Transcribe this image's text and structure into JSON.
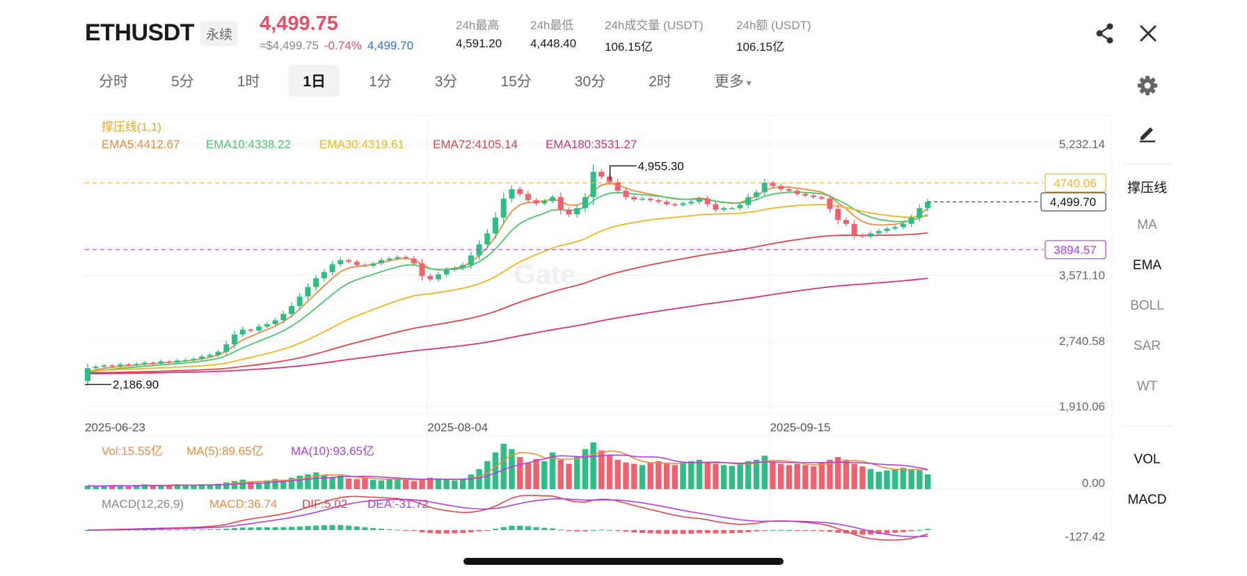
{
  "header": {
    "symbol": "ETHUSDT",
    "contract_type": "永续",
    "last_price": "4,499.75",
    "usd_price": "≈$4,499.75",
    "change_pct": "-0.74%",
    "mark_price": "4,499.70",
    "stats": [
      {
        "label": "24h最高",
        "value": "4,591.20"
      },
      {
        "label": "24h最低",
        "value": "4,448.40"
      },
      {
        "label": "24h成交量 (USDT)",
        "value": "106.15亿"
      },
      {
        "label": "24h额 (USDT)",
        "value": "106.15亿"
      }
    ]
  },
  "tabs": [
    "分时",
    "5分",
    "1时",
    "1日",
    "1分",
    "3分",
    "15分",
    "30分",
    "2时",
    "更多"
  ],
  "active_tab": "1日",
  "icons": {
    "share": "share-icon",
    "close": "close-icon",
    "settings": "gear-icon",
    "draw": "pencil-icon"
  },
  "right_panel": {
    "main_indicators": [
      "撑压线",
      "MA",
      "EMA",
      "BOLL",
      "SAR",
      "WT"
    ],
    "active_main": [
      "撑压线",
      "EMA"
    ],
    "sub_indicators": [
      "VOL",
      "MACD"
    ]
  },
  "chart_data": {
    "type": "candlestick",
    "interval": "1日",
    "watermark": "Gate",
    "support_resistance_label": "撑压线(1,1)",
    "ema_legend": [
      {
        "name": "EMA5",
        "text": "EMA5:4412.67",
        "color": "#f08a3c"
      },
      {
        "name": "EMA10",
        "text": "EMA10:4338.22",
        "color": "#48c86a"
      },
      {
        "name": "EMA30",
        "text": "EMA30:4319.61",
        "color": "#f2b51c"
      },
      {
        "name": "EMA72",
        "text": "EMA72:4105.14",
        "color": "#e4424a"
      },
      {
        "name": "EMA180",
        "text": "EMA180:3531.27",
        "color": "#d8307e"
      }
    ],
    "y_ticks": [
      "5,232.14",
      "3,571.10",
      "2,740.58",
      "1,910.06"
    ],
    "y_tick_values": [
      5232.14,
      3571.1,
      2740.58,
      1910.06
    ],
    "x_labels": [
      {
        "label": "2025-06-23",
        "index": 0
      },
      {
        "label": "2025-08-04",
        "index": 42
      },
      {
        "label": "2025-09-15",
        "index": 84
      }
    ],
    "resistance": {
      "label": "4740.06",
      "value": 4740.06,
      "color": "#f5b82e"
    },
    "support": {
      "label": "3894.57",
      "value": 3894.57,
      "color": "#b03ee8"
    },
    "current": {
      "label": "4,499.70",
      "value": 4499.7
    },
    "high_marker": {
      "label": "4,955.30",
      "value": 4955.3
    },
    "low_marker": {
      "label": "2,186.90",
      "value": 2186.9
    },
    "up_color": "#2ebd85",
    "down_color": "#f0616d",
    "closes": [
      2393,
      2412,
      2428,
      2421,
      2440,
      2436,
      2445,
      2462,
      2450,
      2478,
      2466,
      2488,
      2495,
      2510,
      2540,
      2560,
      2600,
      2695,
      2820,
      2880,
      2870,
      2920,
      2950,
      3000,
      3080,
      3180,
      3300,
      3420,
      3530,
      3610,
      3710,
      3760,
      3740,
      3700,
      3690,
      3720,
      3760,
      3780,
      3800,
      3780,
      3720,
      3560,
      3520,
      3580,
      3640,
      3660,
      3700,
      3820,
      3960,
      4100,
      4300,
      4540,
      4660,
      4600,
      4520,
      4480,
      4510,
      4560,
      4400,
      4340,
      4420,
      4560,
      4880,
      4820,
      4750,
      4640,
      4560,
      4530,
      4540,
      4520,
      4500,
      4470,
      4460,
      4480,
      4500,
      4540,
      4470,
      4400,
      4420,
      4420,
      4460,
      4560,
      4620,
      4740,
      4700,
      4660,
      4640,
      4600,
      4580,
      4560,
      4540,
      4410,
      4270,
      4220,
      4080,
      4060,
      4100,
      4130,
      4160,
      4180,
      4220,
      4300,
      4420,
      4499.7
    ],
    "volume": {
      "legend": [
        {
          "text": "Vol:15.55亿",
          "color": "#f08a3c"
        },
        {
          "text": "MA(5):89.65亿",
          "color": "#f08a3c"
        },
        {
          "text": "MA(10):93.65亿",
          "color": "#b03ee8"
        }
      ],
      "axis_label": "0.00",
      "values": [
        5,
        4,
        5,
        6,
        5,
        4,
        6,
        7,
        6,
        5,
        6,
        7,
        6,
        5,
        7,
        6,
        8,
        10,
        12,
        14,
        11,
        10,
        13,
        15,
        14,
        17,
        20,
        22,
        25,
        21,
        18,
        20,
        16,
        15,
        17,
        14,
        13,
        16,
        15,
        14,
        12,
        15,
        17,
        16,
        14,
        13,
        15,
        22,
        30,
        42,
        55,
        68,
        60,
        48,
        40,
        45,
        42,
        55,
        44,
        38,
        48,
        60,
        70,
        58,
        50,
        44,
        40,
        38,
        36,
        40,
        42,
        38,
        36,
        40,
        42,
        44,
        40,
        38,
        36,
        35,
        38,
        42,
        44,
        50,
        40,
        38,
        36,
        38,
        36,
        34,
        40,
        44,
        48,
        44,
        38,
        34,
        30,
        26,
        28,
        30,
        32,
        30,
        28,
        22
      ]
    },
    "macd": {
      "legend": [
        {
          "text": "MACD(12,26,9)",
          "color": "#888888"
        },
        {
          "text": "MACD:36.74",
          "color": "#f08a3c"
        },
        {
          "text": "DIF:5.02",
          "color": "#e4424a"
        },
        {
          "text": "DEA:-31.72",
          "color": "#b03ee8"
        }
      ],
      "axis_label": "-127.42"
    }
  }
}
